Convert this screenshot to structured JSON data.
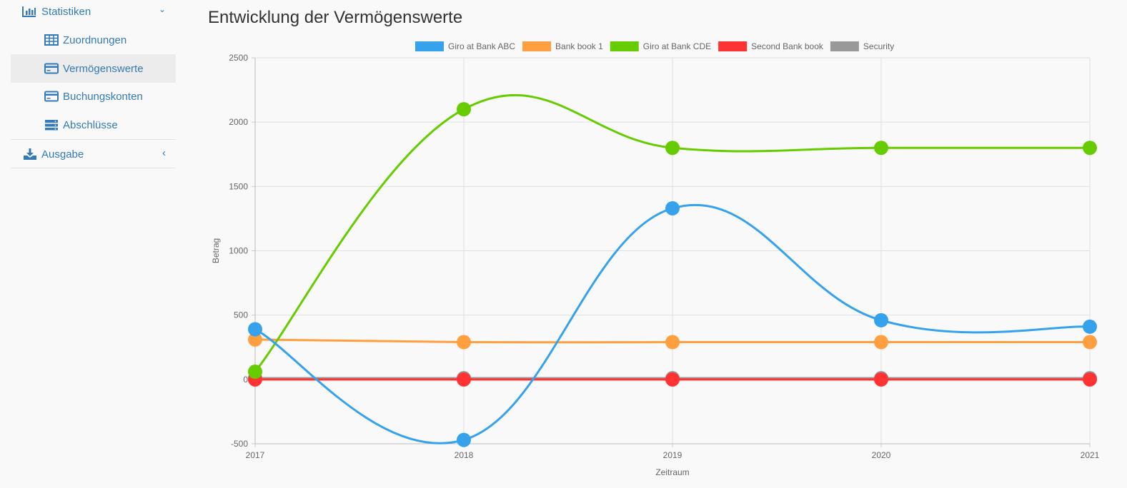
{
  "sidebar": {
    "items": [
      {
        "label": "Statistiken",
        "icon": "bar-chart-icon",
        "chevron": "⌄"
      },
      {
        "label": "Zuordnungen",
        "icon": "table-icon"
      },
      {
        "label": "Vermögenswerte",
        "icon": "credit-card-icon",
        "active": true
      },
      {
        "label": "Buchungskonten",
        "icon": "credit-card-icon"
      },
      {
        "label": "Abschlüsse",
        "icon": "server-icon"
      },
      {
        "label": "Ausgabe",
        "icon": "download-icon",
        "chevron": "‹"
      }
    ]
  },
  "main": {
    "title": "Entwicklung der Vermögenswerte"
  },
  "chart_data": {
    "type": "line",
    "title": "",
    "xlabel": "Zeitraum",
    "ylabel": "Betrag",
    "x": [
      "2017",
      "2018",
      "2019",
      "2020",
      "2021"
    ],
    "ylim": [
      -500,
      2500
    ],
    "yticks": [
      -500,
      0,
      500,
      1000,
      1500,
      2000,
      2500
    ],
    "grid": true,
    "legend_position": "top",
    "series": [
      {
        "name": "Giro at Bank ABC",
        "color": "#36a2eb",
        "values": [
          390,
          -470,
          1330,
          460,
          410
        ]
      },
      {
        "name": "Bank book 1",
        "color": "#ff9f40",
        "values": [
          310,
          290,
          290,
          290,
          290
        ]
      },
      {
        "name": "Giro at Bank CDE",
        "color": "#66cc00",
        "values": [
          60,
          2100,
          1800,
          1800,
          1800
        ]
      },
      {
        "name": "Second Bank book",
        "color": "#ff3333",
        "values": [
          0,
          0,
          0,
          0,
          0
        ]
      },
      {
        "name": "Security",
        "color": "#999999",
        "values": [
          10,
          10,
          10,
          10,
          10
        ]
      }
    ]
  }
}
